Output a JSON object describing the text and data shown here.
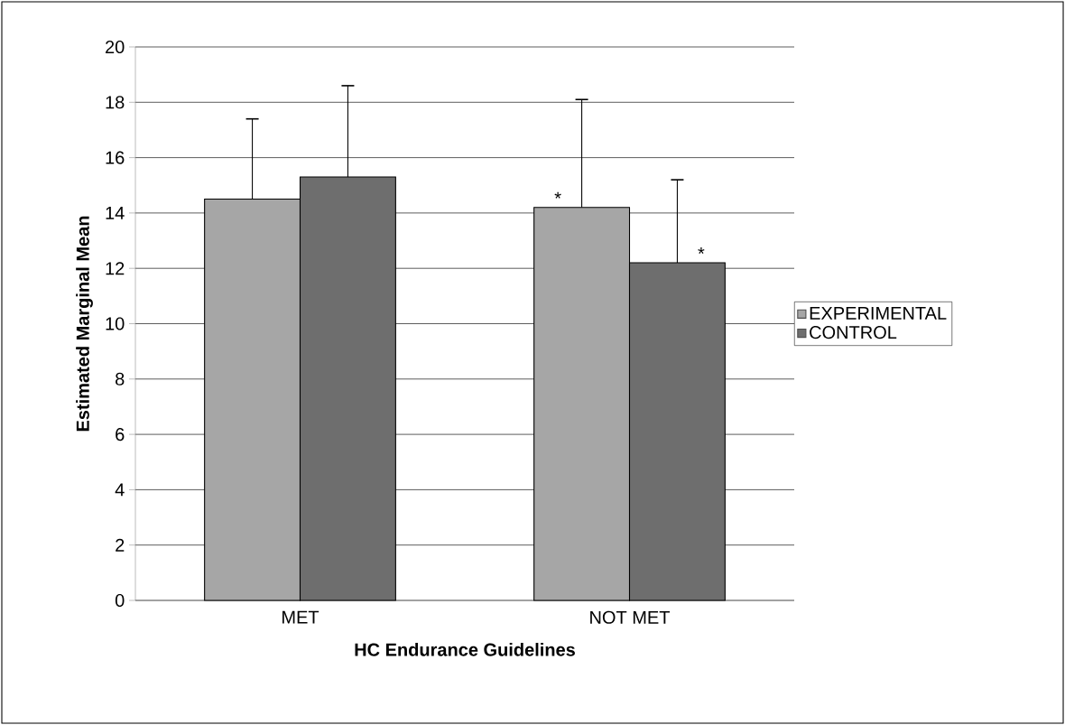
{
  "chart_data": {
    "type": "bar",
    "xlabel": "HC Endurance Guidelines",
    "ylabel": "Estimated Marginal Mean",
    "categories": [
      "MET",
      "NOT MET"
    ],
    "series": [
      {
        "name": "EXPERIMENTAL",
        "color": "#a6a6a6",
        "values": [
          14.5,
          14.2
        ],
        "errors": [
          [
            14.5,
            17.4
          ],
          [
            14.2,
            18.1
          ]
        ]
      },
      {
        "name": "CONTROL",
        "color": "#6e6e6e",
        "values": [
          15.3,
          12.2
        ],
        "errors": [
          [
            15.3,
            18.6
          ],
          [
            12.2,
            15.2
          ]
        ]
      }
    ],
    "ylim": [
      0,
      20
    ],
    "yticks": [
      0,
      2,
      4,
      6,
      8,
      10,
      12,
      14,
      16,
      18,
      20
    ],
    "grid": "y",
    "legend": "right",
    "annotations": [
      "*",
      "*"
    ]
  }
}
